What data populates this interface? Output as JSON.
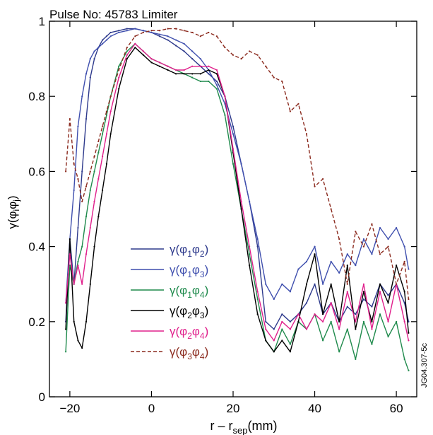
{
  "chart_data": {
    "type": "line",
    "title": "Pulse No: 45783 Limiter",
    "xlabel": "r – rsep(mm)",
    "xlabel_main": "r – r",
    "xlabel_sub": "sep",
    "xlabel_unit": "(mm)",
    "ylabel": "γ(φiφj)",
    "ylabel_main": "γ(φ",
    "ylabel_sub1": "i",
    "ylabel_mid": "φ",
    "ylabel_sub2": "j",
    "ylabel_close": ")",
    "side_label": "JG04.307-5c",
    "xlim": [
      -25,
      65
    ],
    "ylim": [
      0,
      1
    ],
    "xticks": [
      -20,
      0,
      20,
      40,
      60
    ],
    "xtick_labels": [
      "−20",
      "0",
      "20",
      "40",
      "60"
    ],
    "yticks": [
      0,
      0.2,
      0.4,
      0.6,
      0.8,
      1
    ],
    "ytick_labels": [
      "0",
      "0.2",
      "0.4",
      "0.6",
      "0.8",
      "1"
    ],
    "grid": false,
    "legend_position": "lower-left",
    "series": [
      {
        "name": "γ(φ1φ2)",
        "leg_a": "γ(φ",
        "leg_i": "1",
        "leg_b": "φ",
        "leg_j": "2",
        "leg_c": ")",
        "color": "#2e3a8c",
        "dash": false,
        "x": [
          -21,
          -20,
          -19,
          -18,
          -17,
          -16,
          -15,
          -14,
          -13,
          -12,
          -11,
          -10,
          -8,
          -6,
          -4,
          -2,
          0,
          2,
          4,
          6,
          8,
          10,
          12,
          14,
          16,
          18,
          20,
          22,
          24,
          26,
          28,
          30,
          32,
          34,
          36,
          38,
          40,
          42,
          44,
          46,
          48,
          50,
          52,
          54,
          56,
          58,
          60,
          62,
          63
        ],
        "y": [
          0.2,
          0.42,
          0.3,
          0.45,
          0.6,
          0.74,
          0.85,
          0.9,
          0.93,
          0.95,
          0.96,
          0.97,
          0.975,
          0.98,
          0.98,
          0.975,
          0.97,
          0.96,
          0.95,
          0.935,
          0.92,
          0.9,
          0.88,
          0.86,
          0.84,
          0.8,
          0.72,
          0.62,
          0.52,
          0.4,
          0.2,
          0.18,
          0.22,
          0.2,
          0.22,
          0.25,
          0.3,
          0.22,
          0.25,
          0.2,
          0.24,
          0.22,
          0.26,
          0.24,
          0.3,
          0.27,
          0.3,
          0.25,
          0.2
        ]
      },
      {
        "name": "γ(φ1φ3)",
        "leg_a": "γ(φ",
        "leg_i": "1",
        "leg_b": "φ",
        "leg_j": "3",
        "leg_c": ")",
        "color": "#3f4fae",
        "dash": false,
        "x": [
          -21,
          -20,
          -19,
          -18,
          -17,
          -16,
          -15,
          -14,
          -13,
          -12,
          -11,
          -10,
          -8,
          -6,
          -4,
          -2,
          0,
          2,
          4,
          6,
          8,
          10,
          12,
          14,
          16,
          18,
          20,
          22,
          24,
          26,
          28,
          30,
          32,
          34,
          36,
          38,
          40,
          42,
          44,
          46,
          48,
          50,
          52,
          54,
          56,
          58,
          60,
          62,
          63
        ],
        "y": [
          0.25,
          0.42,
          0.55,
          0.72,
          0.8,
          0.86,
          0.9,
          0.92,
          0.93,
          0.94,
          0.95,
          0.96,
          0.97,
          0.975,
          0.98,
          0.975,
          0.97,
          0.965,
          0.96,
          0.95,
          0.94,
          0.92,
          0.9,
          0.87,
          0.83,
          0.78,
          0.7,
          0.62,
          0.52,
          0.42,
          0.3,
          0.26,
          0.3,
          0.28,
          0.34,
          0.36,
          0.4,
          0.3,
          0.36,
          0.33,
          0.38,
          0.35,
          0.42,
          0.38,
          0.45,
          0.42,
          0.45,
          0.4,
          0.34
        ]
      },
      {
        "name": "γ(φ1φ4)",
        "leg_a": "γ(φ",
        "leg_i": "1",
        "leg_b": "φ",
        "leg_j": "4",
        "leg_c": ")",
        "color": "#1f8a4c",
        "dash": false,
        "x": [
          -21,
          -20,
          -19,
          -18,
          -17,
          -16,
          -15,
          -14,
          -13,
          -12,
          -11,
          -10,
          -8,
          -6,
          -4,
          -2,
          0,
          2,
          4,
          6,
          8,
          10,
          12,
          14,
          16,
          18,
          20,
          22,
          24,
          26,
          28,
          30,
          32,
          34,
          36,
          38,
          40,
          42,
          44,
          46,
          48,
          50,
          52,
          54,
          56,
          58,
          60,
          62,
          63
        ],
        "y": [
          0.12,
          0.35,
          0.3,
          0.36,
          0.4,
          0.48,
          0.55,
          0.6,
          0.65,
          0.7,
          0.75,
          0.8,
          0.88,
          0.92,
          0.94,
          0.92,
          0.9,
          0.89,
          0.88,
          0.87,
          0.86,
          0.85,
          0.84,
          0.84,
          0.82,
          0.75,
          0.62,
          0.5,
          0.38,
          0.26,
          0.15,
          0.12,
          0.18,
          0.14,
          0.2,
          0.18,
          0.22,
          0.15,
          0.2,
          0.12,
          0.18,
          0.1,
          0.2,
          0.14,
          0.22,
          0.16,
          0.2,
          0.1,
          0.07
        ]
      },
      {
        "name": "γ(φ2φ3)",
        "leg_a": "γ(φ",
        "leg_i": "2",
        "leg_b": "φ",
        "leg_j": "3",
        "leg_c": ")",
        "color": "#000000",
        "dash": false,
        "x": [
          -21,
          -20,
          -19,
          -18,
          -17,
          -16,
          -15,
          -14,
          -13,
          -12,
          -11,
          -10,
          -8,
          -6,
          -4,
          -2,
          0,
          2,
          4,
          6,
          8,
          10,
          12,
          14,
          16,
          18,
          20,
          22,
          24,
          26,
          28,
          30,
          32,
          34,
          36,
          38,
          40,
          42,
          44,
          46,
          48,
          50,
          52,
          54,
          56,
          58,
          60,
          62,
          63
        ],
        "y": [
          0.18,
          0.42,
          0.2,
          0.15,
          0.13,
          0.2,
          0.3,
          0.4,
          0.48,
          0.55,
          0.62,
          0.7,
          0.82,
          0.9,
          0.93,
          0.91,
          0.89,
          0.88,
          0.87,
          0.86,
          0.86,
          0.86,
          0.86,
          0.87,
          0.86,
          0.8,
          0.65,
          0.5,
          0.35,
          0.22,
          0.15,
          0.12,
          0.15,
          0.12,
          0.2,
          0.3,
          0.38,
          0.22,
          0.3,
          0.2,
          0.35,
          0.18,
          0.28,
          0.2,
          0.3,
          0.25,
          0.35,
          0.28,
          0.17
        ]
      },
      {
        "name": "γ(φ2φ4)",
        "leg_a": "γ(φ",
        "leg_i": "2",
        "leg_b": "φ",
        "leg_j": "4",
        "leg_c": ")",
        "color": "#e0208c",
        "dash": false,
        "x": [
          -21,
          -20,
          -19,
          -18,
          -17,
          -16,
          -15,
          -14,
          -13,
          -12,
          -11,
          -10,
          -8,
          -6,
          -4,
          -2,
          0,
          2,
          4,
          6,
          8,
          10,
          12,
          14,
          16,
          18,
          20,
          22,
          24,
          26,
          28,
          30,
          32,
          34,
          36,
          38,
          40,
          42,
          44,
          46,
          48,
          50,
          52,
          54,
          56,
          58,
          60,
          62,
          63
        ],
        "y": [
          0.25,
          0.38,
          0.3,
          0.35,
          0.3,
          0.38,
          0.45,
          0.52,
          0.58,
          0.64,
          0.7,
          0.76,
          0.85,
          0.91,
          0.94,
          0.92,
          0.9,
          0.89,
          0.88,
          0.87,
          0.87,
          0.88,
          0.88,
          0.88,
          0.87,
          0.8,
          0.66,
          0.52,
          0.4,
          0.28,
          0.18,
          0.15,
          0.2,
          0.18,
          0.22,
          0.18,
          0.22,
          0.2,
          0.25,
          0.18,
          0.28,
          0.2,
          0.3,
          0.18,
          0.28,
          0.2,
          0.3,
          0.2,
          0.15
        ]
      },
      {
        "name": "γ(φ3φ4)",
        "leg_a": "γ(φ",
        "leg_i": "3",
        "leg_b": "φ",
        "leg_j": "4",
        "leg_c": ")",
        "color": "#8b2a1e",
        "dash": true,
        "x": [
          -21,
          -20,
          -19,
          -18,
          -17,
          -16,
          -15,
          -14,
          -13,
          -12,
          -11,
          -10,
          -8,
          -6,
          -4,
          -2,
          0,
          2,
          4,
          6,
          8,
          10,
          12,
          14,
          16,
          18,
          20,
          22,
          24,
          26,
          28,
          30,
          32,
          34,
          36,
          38,
          40,
          42,
          44,
          46,
          48,
          50,
          52,
          54,
          56,
          58,
          60,
          62,
          63
        ],
        "y": [
          0.6,
          0.74,
          0.62,
          0.58,
          0.52,
          0.56,
          0.6,
          0.64,
          0.68,
          0.72,
          0.76,
          0.8,
          0.87,
          0.93,
          0.96,
          0.97,
          0.975,
          0.975,
          0.98,
          0.98,
          0.975,
          0.97,
          0.96,
          0.97,
          0.96,
          0.93,
          0.91,
          0.9,
          0.92,
          0.91,
          0.88,
          0.85,
          0.84,
          0.76,
          0.78,
          0.7,
          0.56,
          0.58,
          0.5,
          0.42,
          0.3,
          0.44,
          0.4,
          0.46,
          0.38,
          0.4,
          0.3,
          0.36,
          0.26
        ]
      }
    ]
  }
}
